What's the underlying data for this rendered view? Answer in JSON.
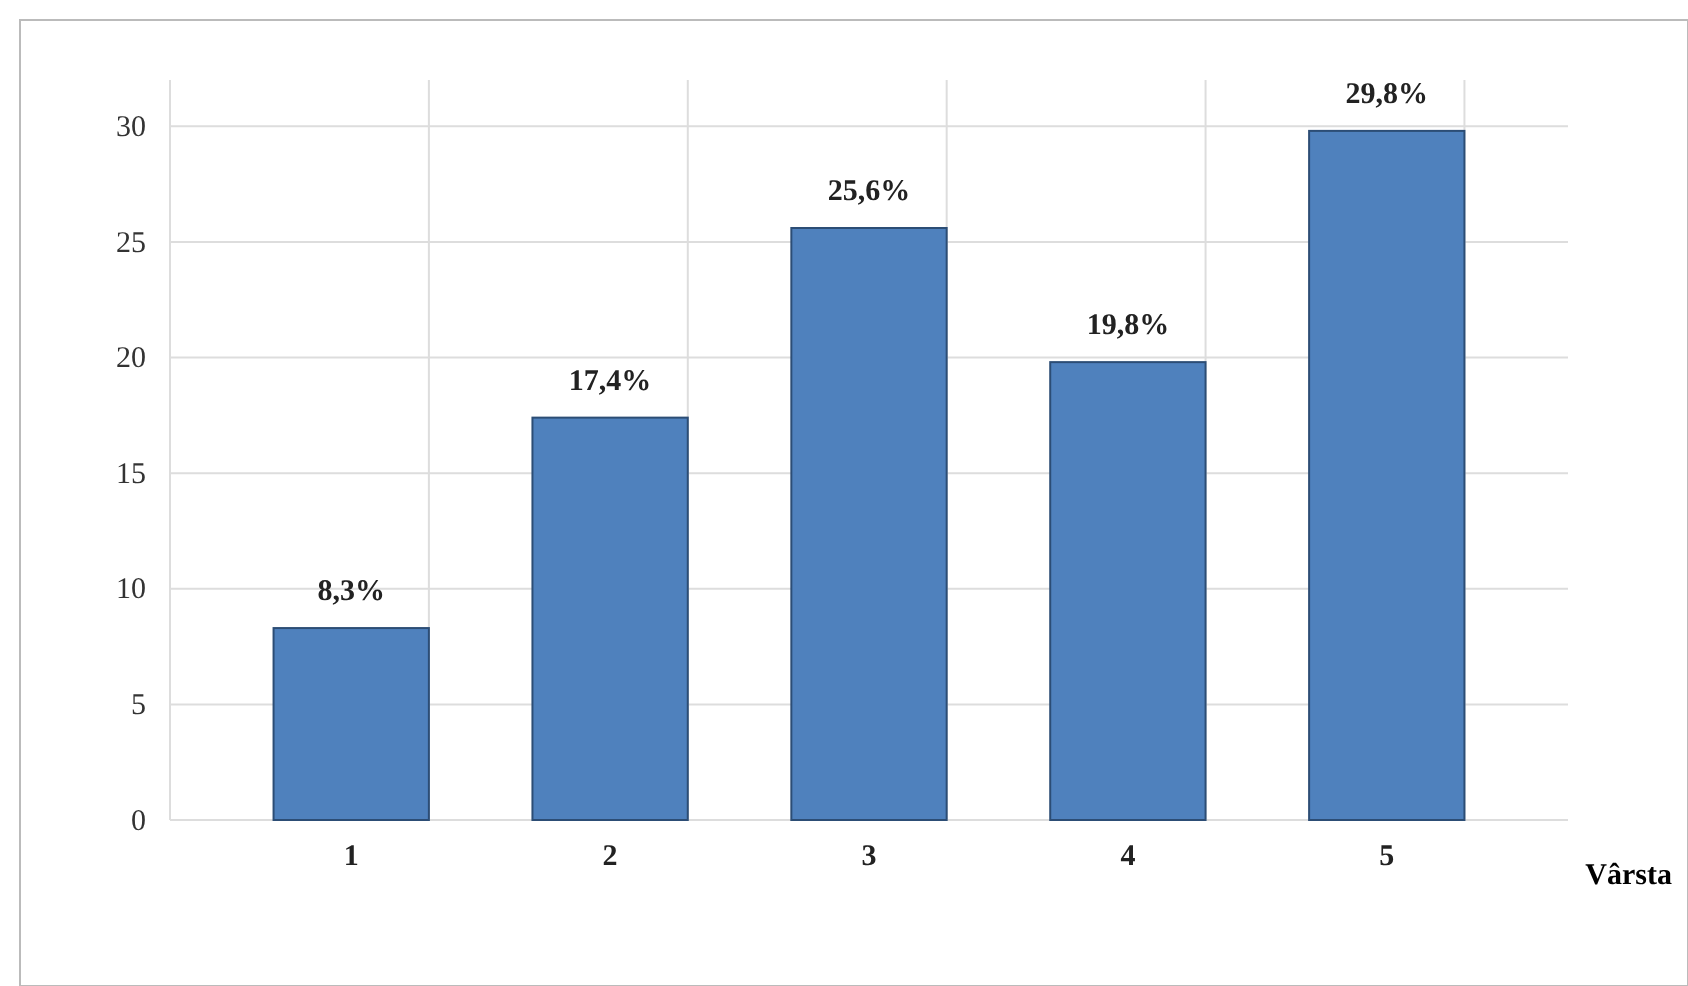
{
  "chart_data": {
    "type": "bar",
    "xlabel": "Vârsta",
    "categories": [
      "1",
      "2",
      "3",
      "4",
      "5"
    ],
    "values": [
      8.3,
      17.4,
      25.6,
      19.8,
      29.8
    ],
    "value_labels": [
      "8,3%",
      "17,4%",
      "25,6%",
      "19,8%",
      "29,8%"
    ],
    "color": "#4f81bd",
    "ylim": [
      0,
      32
    ],
    "yticks": [
      0,
      5,
      10,
      15,
      20,
      25,
      30
    ],
    "grid": true
  }
}
